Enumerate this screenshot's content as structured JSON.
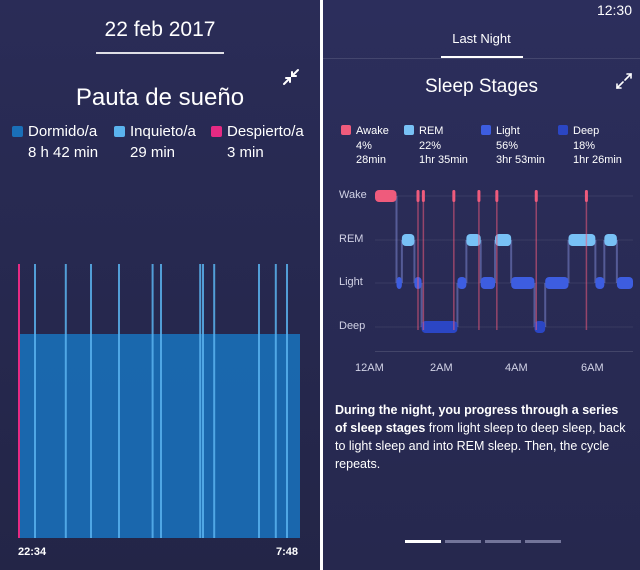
{
  "left": {
    "date": "22 feb 2017",
    "title": "Pauta de sueño",
    "legend": [
      {
        "label": "Dormido/a",
        "value": "8 h 42 min",
        "color": "#1a6fb8"
      },
      {
        "label": "Inquieto/a",
        "value": "29 min",
        "color": "#5ab3ee"
      },
      {
        "label": "Despierto/a",
        "value": "3 min",
        "color": "#e62a83"
      }
    ],
    "start_time": "22:34",
    "end_time": "7:48",
    "icons": {
      "collapse": "collapse-arrows-icon"
    }
  },
  "right": {
    "clock": "12:30",
    "tab": "Last Night",
    "title": "Sleep Stages",
    "stages": [
      {
        "name": "Awake",
        "percent": "4%",
        "duration": "28min",
        "color": "#ef5b7c"
      },
      {
        "name": "REM",
        "percent": "22%",
        "duration": "1hr 35min",
        "color": "#78c1f5"
      },
      {
        "name": "Light",
        "percent": "56%",
        "duration": "3hr 53min",
        "color": "#3d5de0"
      },
      {
        "name": "Deep",
        "percent": "18%",
        "duration": "1hr 26min",
        "color": "#2b46c4"
      }
    ],
    "description_bold": "During the night, you progress through a series of sleep stages",
    "description_rest": " from light sleep to deep sleep, back to light sleep and into REM sleep. Then, the cycle repeats.",
    "pager": {
      "count": 4,
      "active": 0
    },
    "icons": {
      "expand": "expand-arrows-icon"
    }
  },
  "chart_data": [
    {
      "type": "area",
      "title": "Pauta de sueño",
      "x_range": [
        "22:34",
        "7:48"
      ],
      "series": [
        {
          "name": "Dormido/a",
          "total": "8 h 42 min"
        },
        {
          "name": "Inquieto/a",
          "total": "29 min"
        },
        {
          "name": "Despierto/a",
          "total": "3 min"
        }
      ],
      "restless_marks": [
        0.05,
        0.16,
        0.25,
        0.35,
        0.47,
        0.5,
        0.64,
        0.65,
        0.69,
        0.85,
        0.91,
        0.95
      ],
      "awake_marks": [
        0.0
      ]
    },
    {
      "type": "line",
      "title": "Sleep Stages",
      "y_categories": [
        "Wake",
        "REM",
        "Light",
        "Deep"
      ],
      "x_ticks": [
        "12AM",
        "2AM",
        "4AM",
        "6AM"
      ],
      "x_range_hours": [
        23.8,
        7.0
      ],
      "segments": [
        [
          "Wake",
          23.8,
          24.4
        ],
        [
          "Light",
          24.4,
          24.55
        ],
        [
          "REM",
          24.55,
          24.9
        ],
        [
          "Light",
          24.9,
          25.1
        ],
        [
          "Deep",
          25.1,
          26.1
        ],
        [
          "Light",
          26.1,
          26.35
        ],
        [
          "REM",
          26.35,
          26.75
        ],
        [
          "Light",
          26.75,
          27.15
        ],
        [
          "REM",
          27.15,
          27.6
        ],
        [
          "Light",
          27.6,
          28.25
        ],
        [
          "Deep",
          28.25,
          28.55
        ],
        [
          "Light",
          28.55,
          29.2
        ],
        [
          "REM",
          29.2,
          29.95
        ],
        [
          "Light",
          29.95,
          30.2
        ],
        [
          "REM",
          30.2,
          30.55
        ],
        [
          "Light",
          30.55,
          31.0
        ]
      ],
      "awake_spikes": [
        25.0,
        25.15,
        26.0,
        26.7,
        27.2,
        28.3,
        29.7
      ]
    }
  ]
}
